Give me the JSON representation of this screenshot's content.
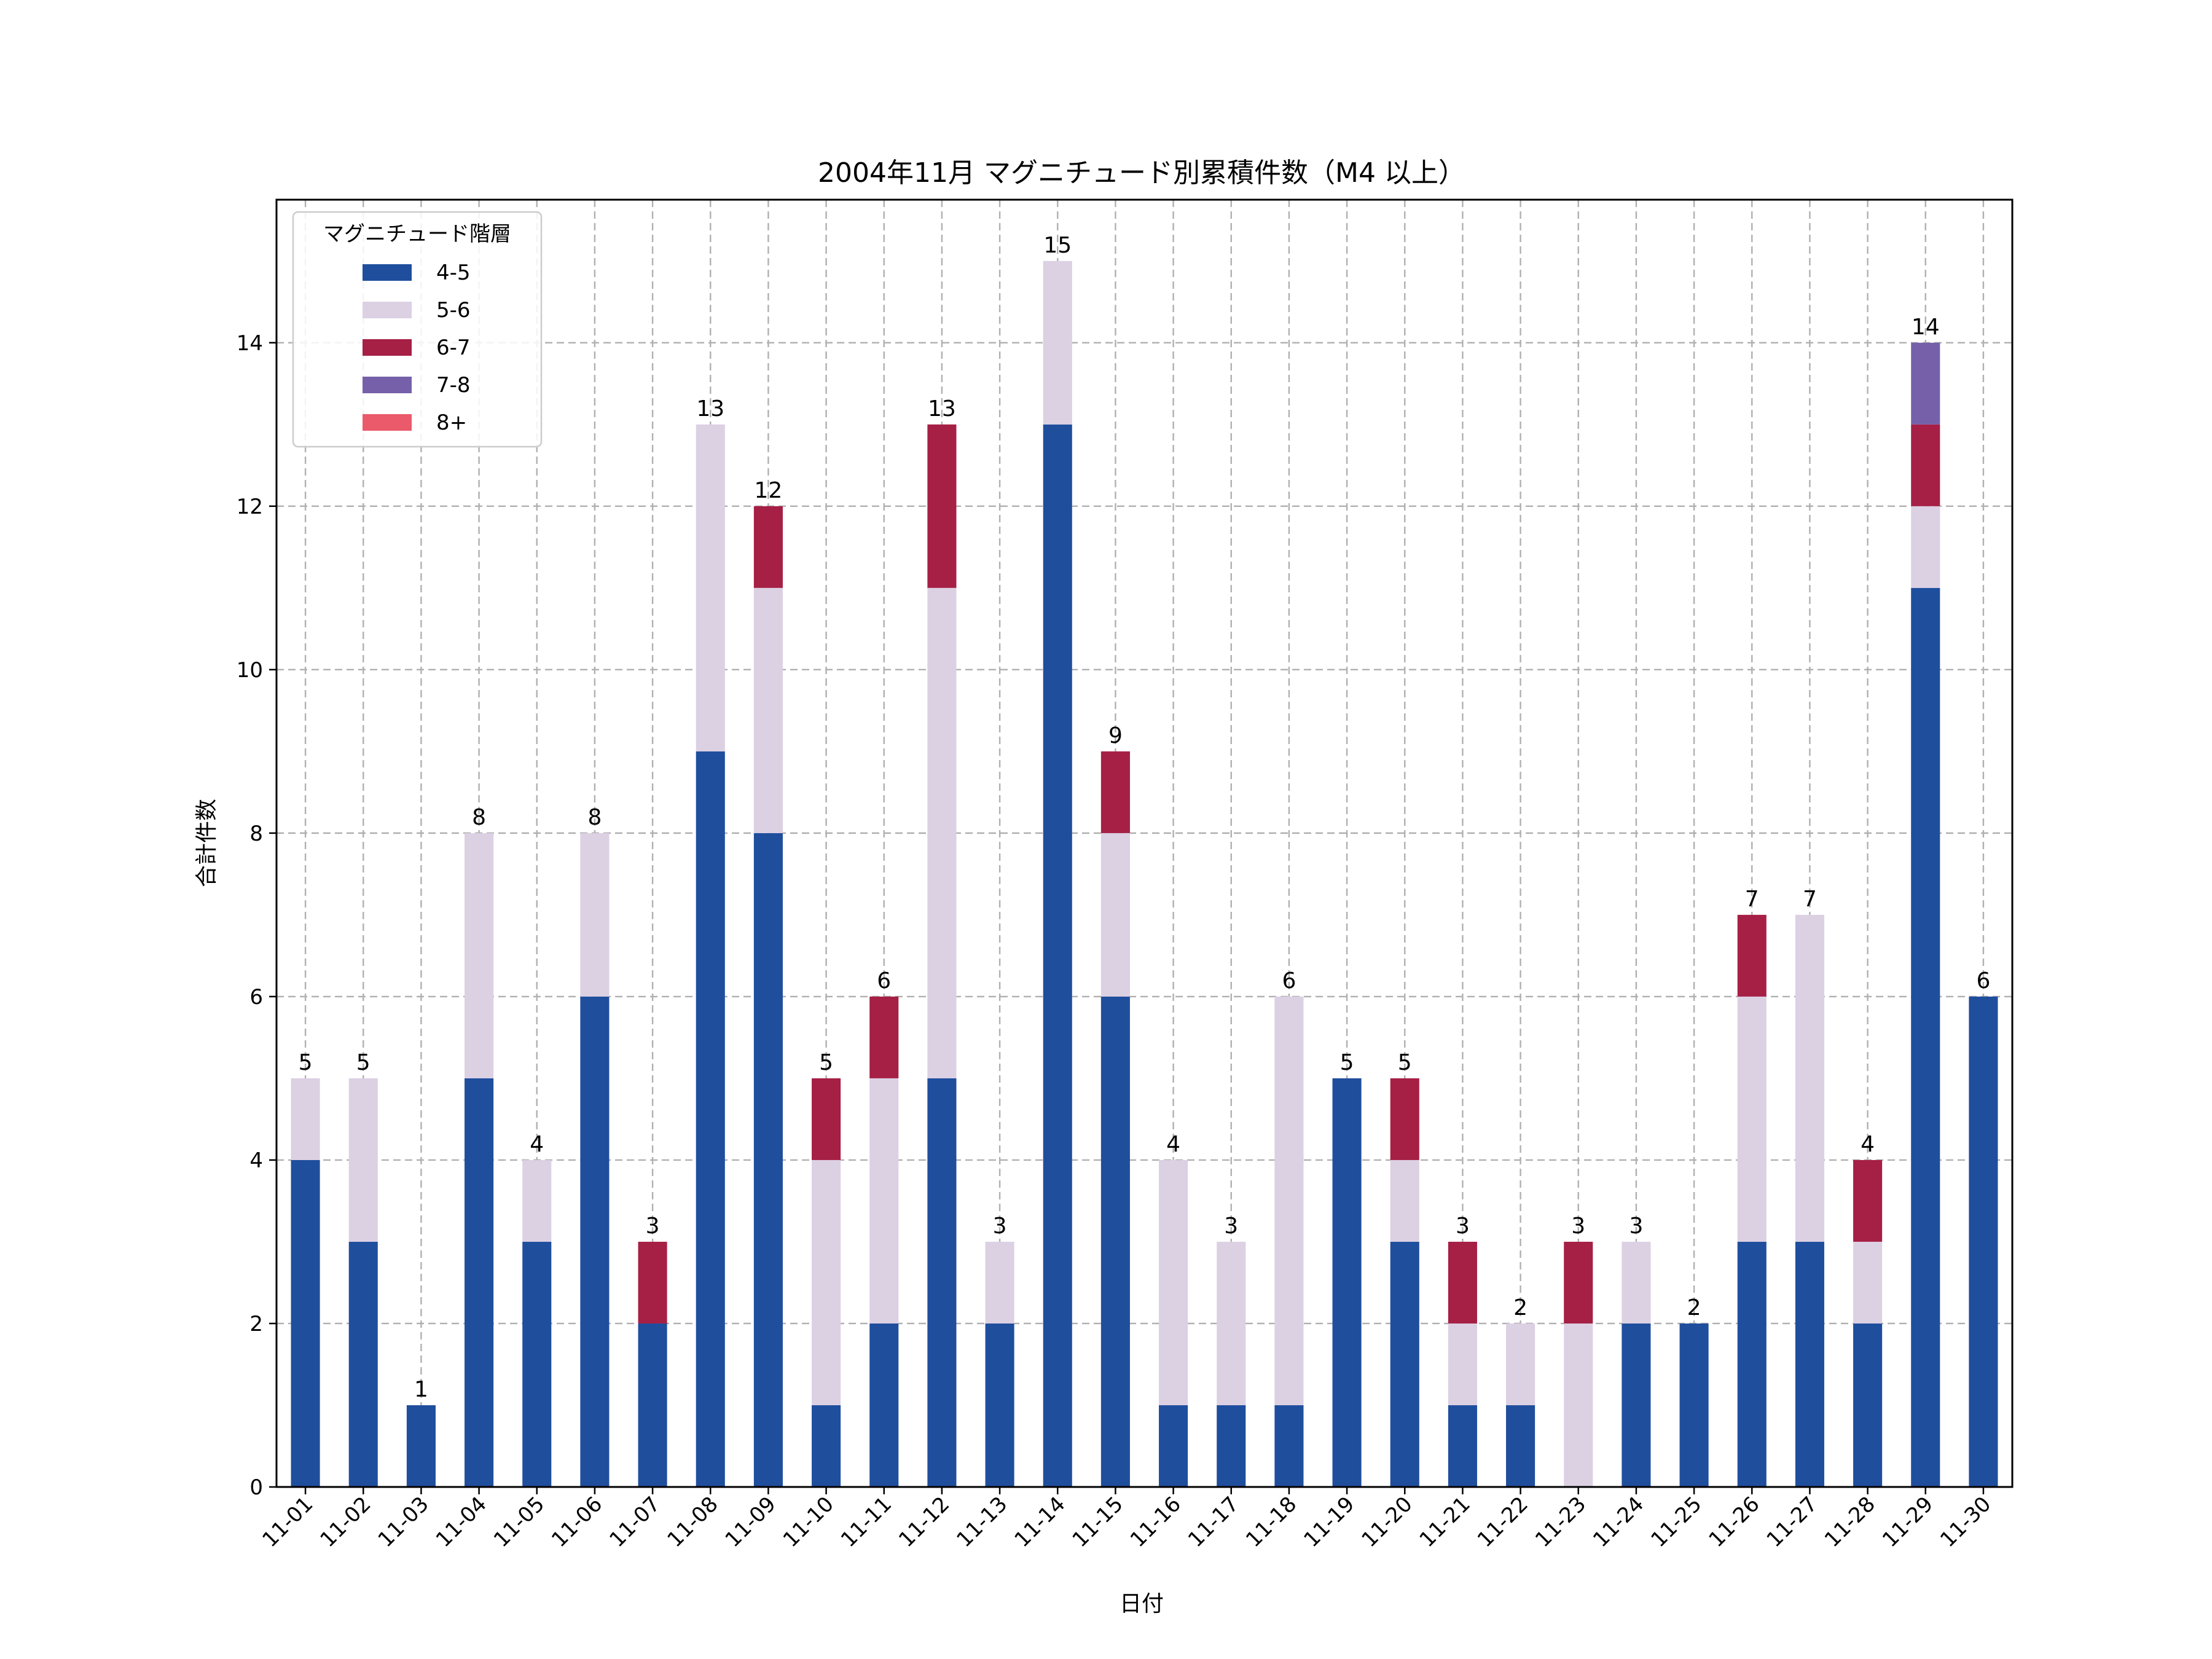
{
  "chart_data": {
    "type": "bar",
    "stacked": true,
    "title": "2004年11月 マグニチュード別累積件数（M4 以上）",
    "xlabel": "日付",
    "ylabel": "合計件数",
    "ylim": [
      0,
      15.75
    ],
    "yticks": [
      0,
      2,
      4,
      6,
      8,
      10,
      12,
      14
    ],
    "grid": true,
    "legend_title": "マグニチュード階層",
    "legend_position": "upper-left",
    "categories": [
      "11-01",
      "11-02",
      "11-03",
      "11-04",
      "11-05",
      "11-06",
      "11-07",
      "11-08",
      "11-09",
      "11-10",
      "11-11",
      "11-12",
      "11-13",
      "11-14",
      "11-15",
      "11-16",
      "11-17",
      "11-18",
      "11-19",
      "11-20",
      "11-21",
      "11-22",
      "11-23",
      "11-24",
      "11-25",
      "11-26",
      "11-27",
      "11-28",
      "11-29",
      "11-30"
    ],
    "series": [
      {
        "name": "4-5",
        "color": "#1f4e9d",
        "values": [
          4,
          3,
          1,
          5,
          3,
          6,
          2,
          9,
          8,
          1,
          2,
          5,
          2,
          13,
          6,
          1,
          1,
          1,
          5,
          3,
          1,
          1,
          0,
          2,
          2,
          3,
          3,
          2,
          11,
          6
        ]
      },
      {
        "name": "5-6",
        "color": "#dcd0e3",
        "values": [
          1,
          2,
          0,
          3,
          1,
          2,
          0,
          4,
          3,
          3,
          3,
          6,
          1,
          2,
          2,
          3,
          2,
          5,
          0,
          1,
          1,
          1,
          2,
          1,
          0,
          3,
          4,
          1,
          1,
          0
        ]
      },
      {
        "name": "6-7",
        "color": "#a61f45",
        "values": [
          0,
          0,
          0,
          0,
          0,
          0,
          1,
          0,
          1,
          1,
          1,
          2,
          0,
          0,
          1,
          0,
          0,
          0,
          0,
          1,
          1,
          0,
          1,
          0,
          0,
          1,
          0,
          1,
          1,
          0
        ]
      },
      {
        "name": "7-8",
        "color": "#7560a9",
        "values": [
          0,
          0,
          0,
          0,
          0,
          0,
          0,
          0,
          0,
          0,
          0,
          0,
          0,
          0,
          0,
          0,
          0,
          0,
          0,
          0,
          0,
          0,
          0,
          0,
          0,
          0,
          0,
          0,
          1,
          0
        ]
      },
      {
        "name": "8+",
        "color": "#ea5a6a",
        "values": [
          0,
          0,
          0,
          0,
          0,
          0,
          0,
          0,
          0,
          0,
          0,
          0,
          0,
          0,
          0,
          0,
          0,
          0,
          0,
          0,
          0,
          0,
          0,
          0,
          0,
          0,
          0,
          0,
          0,
          0
        ]
      }
    ],
    "totals": [
      5,
      5,
      1,
      8,
      4,
      8,
      3,
      13,
      12,
      5,
      6,
      13,
      3,
      15,
      9,
      4,
      3,
      6,
      5,
      5,
      3,
      2,
      3,
      3,
      2,
      7,
      7,
      4,
      14,
      6
    ]
  }
}
